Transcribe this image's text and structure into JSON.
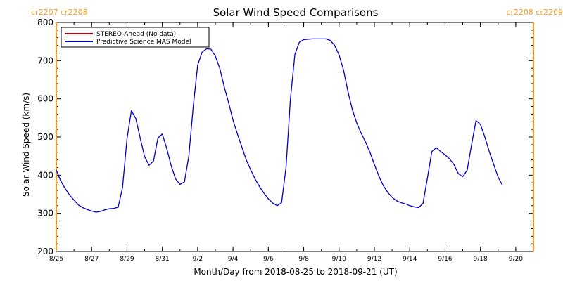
{
  "chart_data": {
    "type": "line",
    "title": "Solar Wind Speed Comparisons",
    "xlabel": "Month/Day from 2018-08-25 to 2018-09-21 (UT)",
    "ylabel": "Solar Wind Speed (km/s)",
    "xlim": [
      "2018-08-25",
      "2018-09-21"
    ],
    "ylim": [
      200,
      800
    ],
    "y_ticks": [
      200,
      300,
      400,
      500,
      600,
      700,
      800
    ],
    "x_tick_dates": [
      "2018-08-25",
      "2018-08-27",
      "2018-08-29",
      "2018-08-31",
      "2018-09-02",
      "2018-09-04",
      "2018-09-06",
      "2018-09-08",
      "2018-09-10",
      "2018-09-12",
      "2018-09-14",
      "2018-09-16",
      "2018-09-18",
      "2018-09-20"
    ],
    "x_tick_labels": [
      "8/25",
      "8/27",
      "8/29",
      "8/31",
      "9/2",
      "9/4",
      "9/6",
      "9/8",
      "9/10",
      "9/12",
      "9/14",
      "9/16",
      "9/18",
      "9/20"
    ],
    "grid": false,
    "legend_position": "top-left",
    "carrington_markers": [
      {
        "date": "2018-08-25",
        "label": "cr2207 cr2208",
        "side": "left",
        "color": "#ff9a1a"
      },
      {
        "date": "2018-09-21",
        "label": "cr2208 cr2209",
        "side": "right",
        "color": "#ff9a1a"
      }
    ],
    "series": [
      {
        "name": "STEREO-Ahead (No data)",
        "color": "#cc0000",
        "points": []
      },
      {
        "name": "Predictive Science MAS Model",
        "color": "#0000cc",
        "points": [
          [
            "2018-08-25 00:00",
            413
          ],
          [
            "2018-08-25 06:00",
            385
          ],
          [
            "2018-08-25 12:00",
            365
          ],
          [
            "2018-08-25 18:00",
            348
          ],
          [
            "2018-08-26 00:00",
            335
          ],
          [
            "2018-08-26 06:00",
            322
          ],
          [
            "2018-08-26 12:00",
            315
          ],
          [
            "2018-08-26 18:00",
            310
          ],
          [
            "2018-08-27 00:00",
            306
          ],
          [
            "2018-08-27 06:00",
            303
          ],
          [
            "2018-08-27 12:00",
            305
          ],
          [
            "2018-08-27 18:00",
            309
          ],
          [
            "2018-08-28 00:00",
            312
          ],
          [
            "2018-08-28 06:00",
            313
          ],
          [
            "2018-08-28 12:00",
            316
          ],
          [
            "2018-08-28 18:00",
            368
          ],
          [
            "2018-08-29 00:00",
            495
          ],
          [
            "2018-08-29 06:00",
            569
          ],
          [
            "2018-08-29 12:00",
            548
          ],
          [
            "2018-08-29 18:00",
            497
          ],
          [
            "2018-08-30 00:00",
            448
          ],
          [
            "2018-08-30 06:00",
            426
          ],
          [
            "2018-08-30 12:00",
            437
          ],
          [
            "2018-08-30 18:00",
            497
          ],
          [
            "2018-08-31 00:00",
            508
          ],
          [
            "2018-08-31 06:00",
            470
          ],
          [
            "2018-08-31 12:00",
            425
          ],
          [
            "2018-08-31 18:00",
            390
          ],
          [
            "2018-09-01 00:00",
            376
          ],
          [
            "2018-09-01 06:00",
            382
          ],
          [
            "2018-09-01 12:00",
            450
          ],
          [
            "2018-09-01 18:00",
            580
          ],
          [
            "2018-09-02 00:00",
            688
          ],
          [
            "2018-09-02 06:00",
            722
          ],
          [
            "2018-09-02 12:00",
            731
          ],
          [
            "2018-09-02 18:00",
            730
          ],
          [
            "2018-09-03 00:00",
            712
          ],
          [
            "2018-09-03 06:00",
            680
          ],
          [
            "2018-09-03 12:00",
            632
          ],
          [
            "2018-09-03 18:00",
            590
          ],
          [
            "2018-09-04 00:00",
            544
          ],
          [
            "2018-09-04 06:00",
            508
          ],
          [
            "2018-09-04 12:00",
            474
          ],
          [
            "2018-09-04 18:00",
            440
          ],
          [
            "2018-09-05 00:00",
            414
          ],
          [
            "2018-09-05 06:00",
            390
          ],
          [
            "2018-09-05 12:00",
            370
          ],
          [
            "2018-09-05 18:00",
            353
          ],
          [
            "2018-09-06 00:00",
            338
          ],
          [
            "2018-09-06 06:00",
            327
          ],
          [
            "2018-09-06 12:00",
            320
          ],
          [
            "2018-09-06 18:00",
            328
          ],
          [
            "2018-09-07 00:00",
            420
          ],
          [
            "2018-09-07 06:00",
            600
          ],
          [
            "2018-09-07 12:00",
            716
          ],
          [
            "2018-09-07 18:00",
            748
          ],
          [
            "2018-09-08 00:00",
            755
          ],
          [
            "2018-09-08 06:00",
            756
          ],
          [
            "2018-09-08 12:00",
            757
          ],
          [
            "2018-09-08 18:00",
            757
          ],
          [
            "2018-09-09 00:00",
            757
          ],
          [
            "2018-09-09 06:00",
            757
          ],
          [
            "2018-09-09 12:00",
            753
          ],
          [
            "2018-09-09 18:00",
            740
          ],
          [
            "2018-09-10 00:00",
            715
          ],
          [
            "2018-09-10 06:00",
            676
          ],
          [
            "2018-09-10 12:00",
            620
          ],
          [
            "2018-09-10 18:00",
            572
          ],
          [
            "2018-09-11 00:00",
            537
          ],
          [
            "2018-09-11 06:00",
            510
          ],
          [
            "2018-09-11 12:00",
            487
          ],
          [
            "2018-09-11 18:00",
            460
          ],
          [
            "2018-09-12 00:00",
            428
          ],
          [
            "2018-09-12 06:00",
            398
          ],
          [
            "2018-09-12 12:00",
            373
          ],
          [
            "2018-09-12 18:00",
            355
          ],
          [
            "2018-09-13 00:00",
            342
          ],
          [
            "2018-09-13 06:00",
            333
          ],
          [
            "2018-09-13 12:00",
            328
          ],
          [
            "2018-09-13 18:00",
            325
          ],
          [
            "2018-09-14 00:00",
            320
          ],
          [
            "2018-09-14 06:00",
            317
          ],
          [
            "2018-09-14 12:00",
            315
          ],
          [
            "2018-09-14 18:00",
            326
          ],
          [
            "2018-09-15 00:00",
            392
          ],
          [
            "2018-09-15 06:00",
            462
          ],
          [
            "2018-09-15 12:00",
            472
          ],
          [
            "2018-09-15 18:00",
            462
          ],
          [
            "2018-09-16 00:00",
            453
          ],
          [
            "2018-09-16 06:00",
            443
          ],
          [
            "2018-09-16 12:00",
            428
          ],
          [
            "2018-09-16 18:00",
            404
          ],
          [
            "2018-09-17 00:00",
            396
          ],
          [
            "2018-09-17 06:00",
            413
          ],
          [
            "2018-09-17 12:00",
            480
          ],
          [
            "2018-09-17 18:00",
            543
          ],
          [
            "2018-09-18 00:00",
            533
          ],
          [
            "2018-09-18 06:00",
            500
          ],
          [
            "2018-09-18 12:00",
            462
          ],
          [
            "2018-09-18 18:00",
            428
          ],
          [
            "2018-09-19 00:00",
            395
          ],
          [
            "2018-09-19 06:00",
            373
          ]
        ]
      }
    ]
  }
}
